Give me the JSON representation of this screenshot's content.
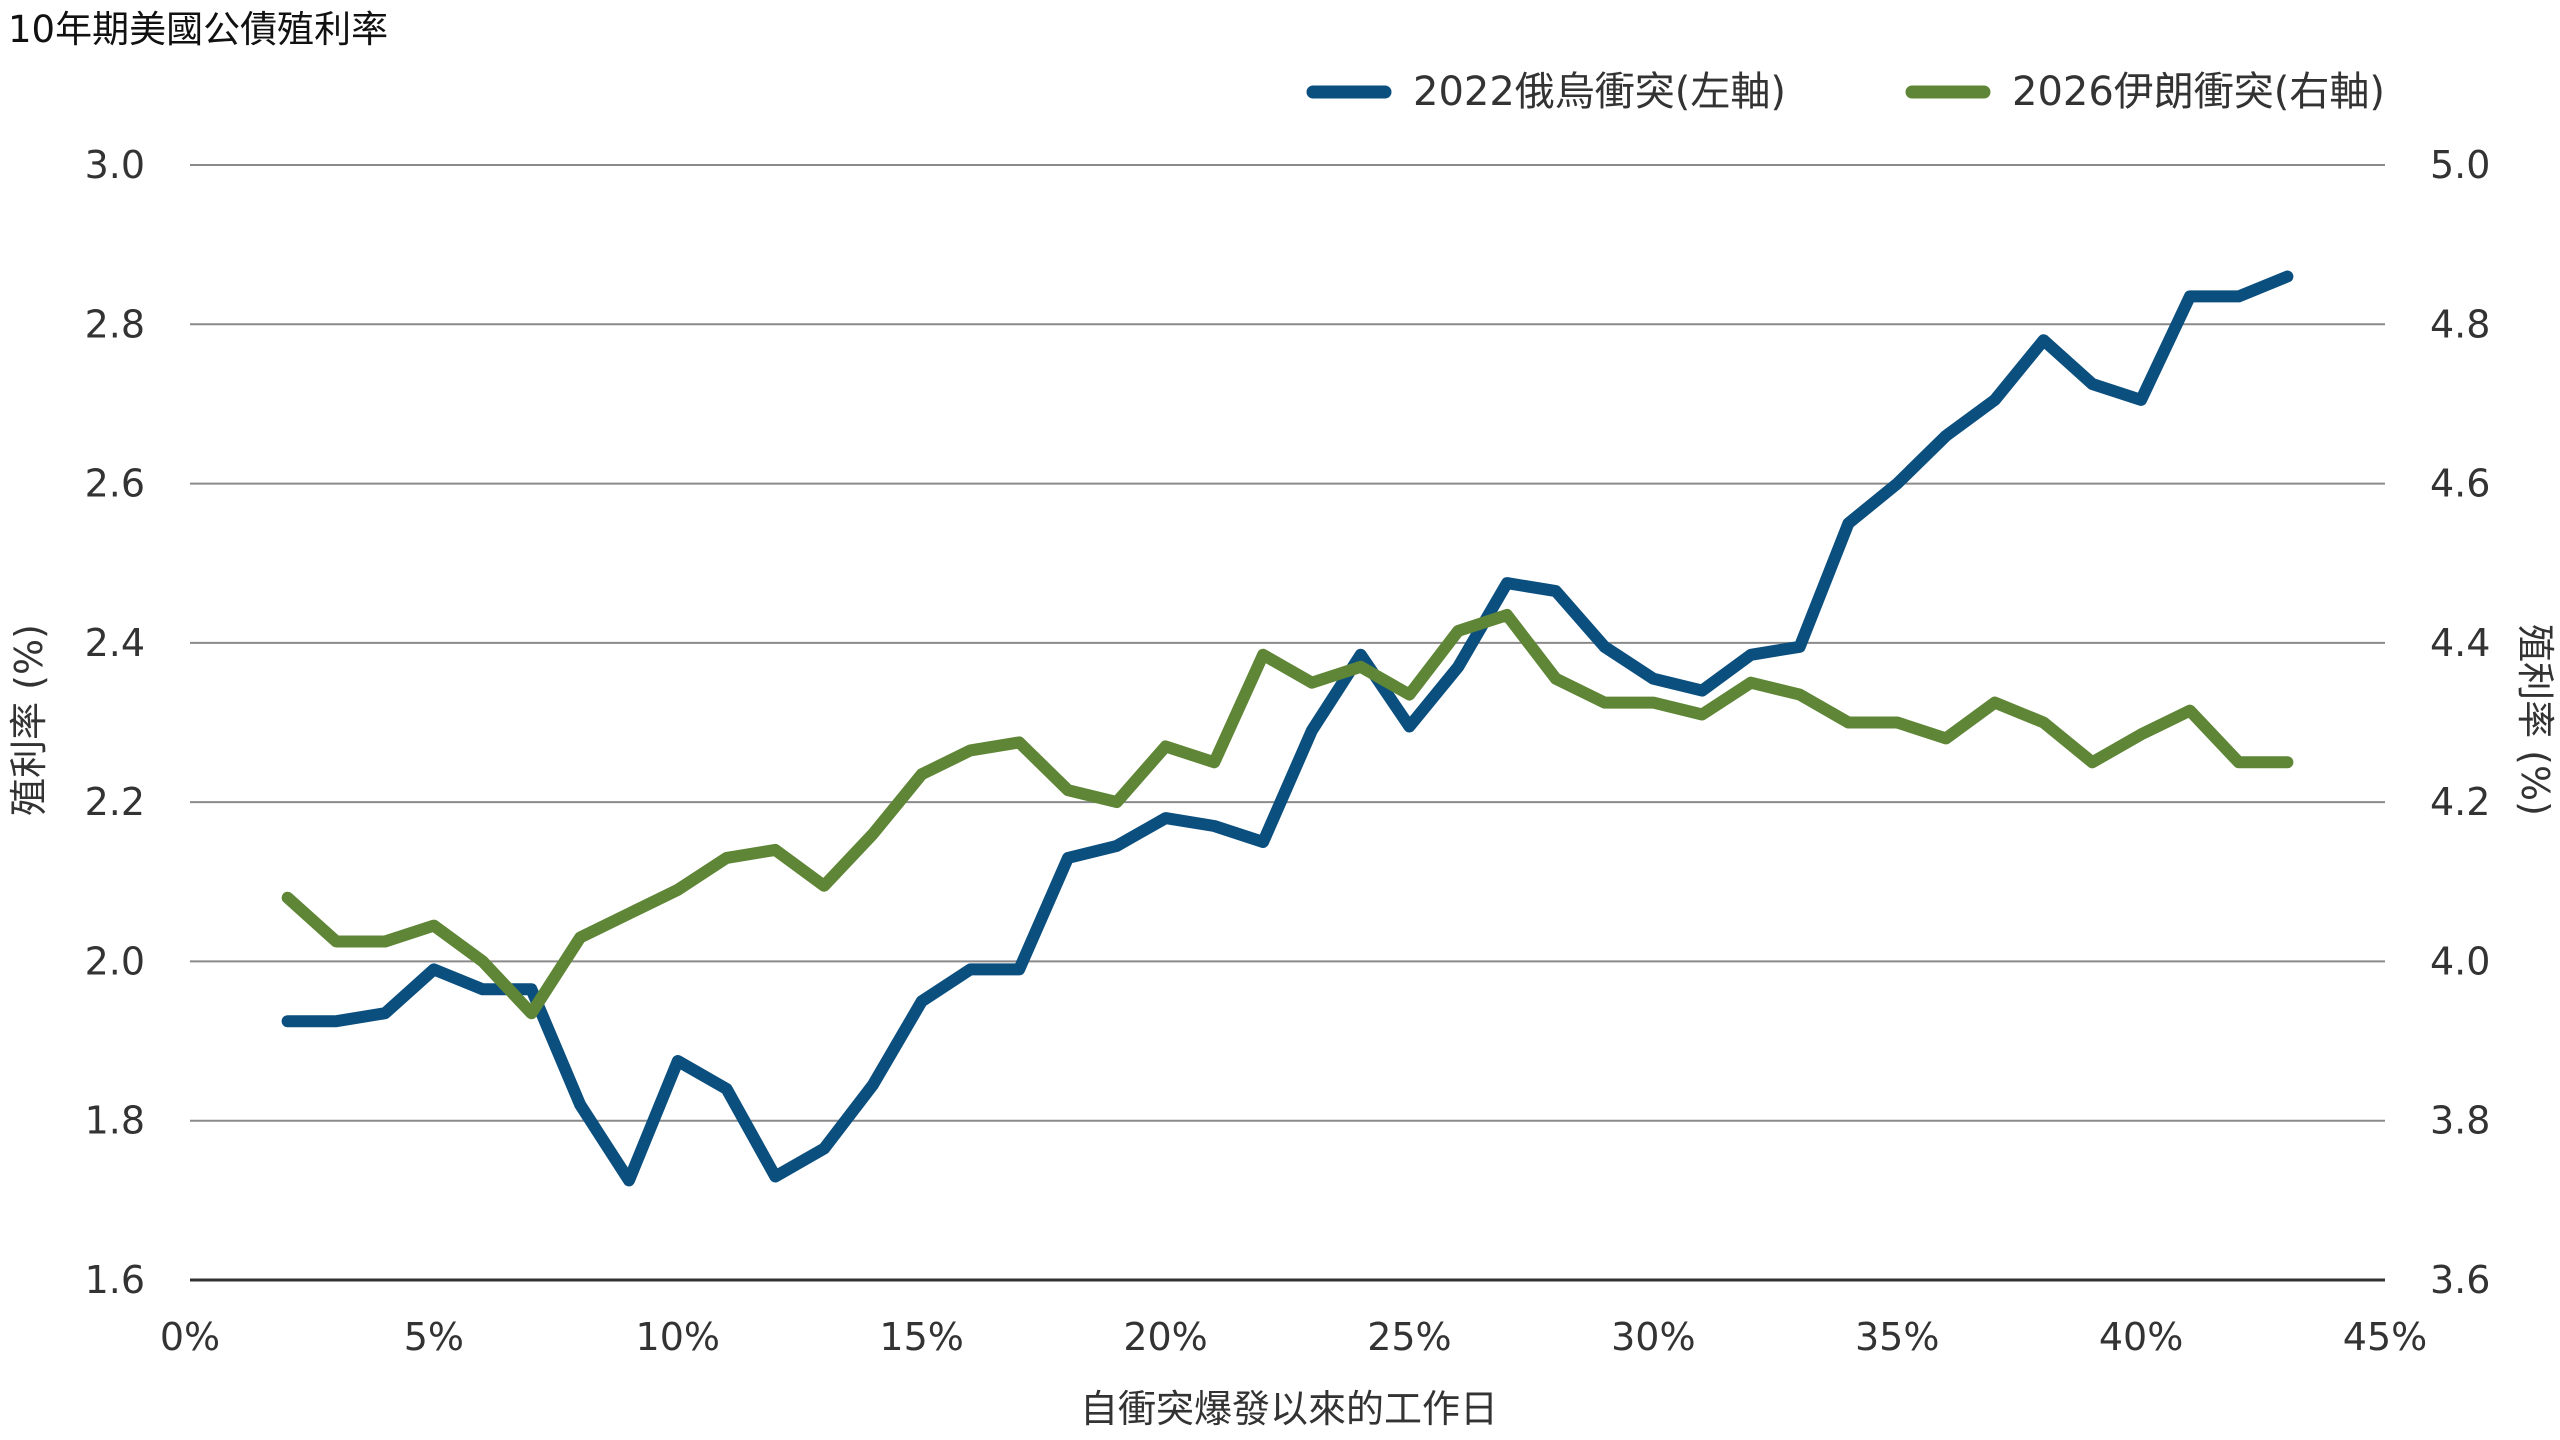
{
  "chart_data": {
    "type": "line",
    "title": "10年期美國公債殖利率",
    "xlabel": "自衝突爆發以來的工作日",
    "ylabel_left": "殖利率 (%)",
    "ylabel_right": "殖利率 (%)",
    "x_ticks": [
      "0%",
      "5%",
      "10%",
      "15%",
      "20%",
      "25%",
      "30%",
      "35%",
      "40%",
      "45%"
    ],
    "xlim": [
      0,
      45
    ],
    "y_left": {
      "lim": [
        1.6,
        3.0
      ],
      "ticks": [
        "1.6",
        "1.8",
        "2.0",
        "2.2",
        "2.4",
        "2.6",
        "2.8",
        "3.0"
      ]
    },
    "y_right": {
      "lim": [
        3.6,
        5.0
      ],
      "ticks": [
        "3.6",
        "3.8",
        "4.0",
        "4.2",
        "4.4",
        "4.6",
        "4.8",
        "5.0"
      ]
    },
    "grid": true,
    "legend_position": "top-right",
    "x": [
      2,
      3,
      4,
      5,
      6,
      7,
      8,
      9,
      10,
      11,
      12,
      13,
      14,
      15,
      16,
      17,
      18,
      19,
      20,
      21,
      22,
      23,
      24,
      25,
      26,
      27,
      28,
      29,
      30,
      31,
      32,
      33,
      34,
      35,
      36,
      37,
      38,
      39,
      40,
      41,
      42,
      43
    ],
    "series": [
      {
        "name": "2022俄烏衝突(左軸)",
        "axis": "left",
        "color": "#0b4f7f",
        "values": [
          1.925,
          1.925,
          1.935,
          1.99,
          1.965,
          1.965,
          1.82,
          1.725,
          1.875,
          1.84,
          1.73,
          1.765,
          1.845,
          1.95,
          1.99,
          1.99,
          2.13,
          2.145,
          2.18,
          2.17,
          2.15,
          2.29,
          2.385,
          2.295,
          2.37,
          2.475,
          2.465,
          2.395,
          2.355,
          2.34,
          2.385,
          2.395,
          2.55,
          2.6,
          2.66,
          2.705,
          2.78,
          2.725,
          2.705,
          2.835,
          2.835,
          2.86
        ]
      },
      {
        "name": "2026伊朗衝突(右軸)",
        "axis": "right",
        "color": "#5f8636",
        "values": [
          4.08,
          4.025,
          4.025,
          4.045,
          4.0,
          3.935,
          4.03,
          4.06,
          4.09,
          4.13,
          4.14,
          4.095,
          4.16,
          4.235,
          4.265,
          4.275,
          4.215,
          4.2,
          4.27,
          4.25,
          4.385,
          4.35,
          4.37,
          4.335,
          4.415,
          4.435,
          4.355,
          4.325,
          4.325,
          4.31,
          4.35,
          4.335,
          4.3,
          4.3,
          4.28,
          4.325,
          4.3,
          4.25,
          4.285,
          4.315,
          4.25,
          4.25
        ]
      }
    ]
  }
}
